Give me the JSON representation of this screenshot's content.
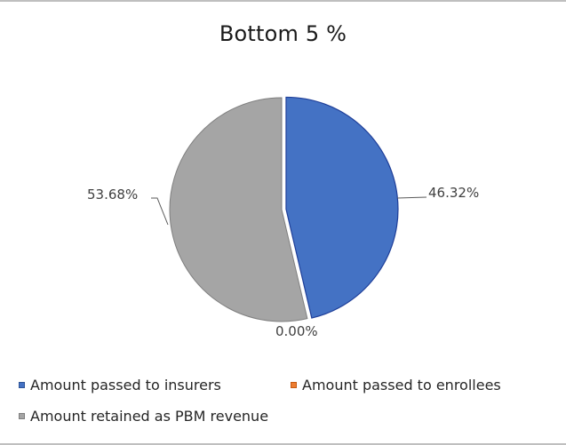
{
  "chart_data": {
    "type": "pie",
    "title": "Bottom 5 %",
    "categories": [
      "Amount passed to insurers",
      "Amount passed to enrollees",
      "Amount retained as PBM revenue"
    ],
    "values": [
      46.32,
      0.0,
      53.68
    ],
    "value_labels": [
      "46.32%",
      "0.00%",
      "53.68%"
    ],
    "colors": [
      "#4472c4",
      "#ed7d31",
      "#a5a5a5"
    ],
    "exploded": [
      "Amount passed to insurers"
    ],
    "legend_position": "bottom",
    "start_angle_deg": 0,
    "direction": "clockwise"
  },
  "legend": {
    "items": [
      {
        "label": "Amount passed to insurers",
        "color": "#4472c4",
        "border": "#2f5597"
      },
      {
        "label": "Amount passed to enrollees",
        "color": "#ed7d31",
        "border": "#c55a11"
      },
      {
        "label": "Amount retained as PBM revenue",
        "color": "#a5a5a5",
        "border": "#7f7f7f"
      }
    ]
  },
  "labels": {
    "insurers": "46.32%",
    "enrollees": "0.00%",
    "pbm": "53.68%"
  }
}
